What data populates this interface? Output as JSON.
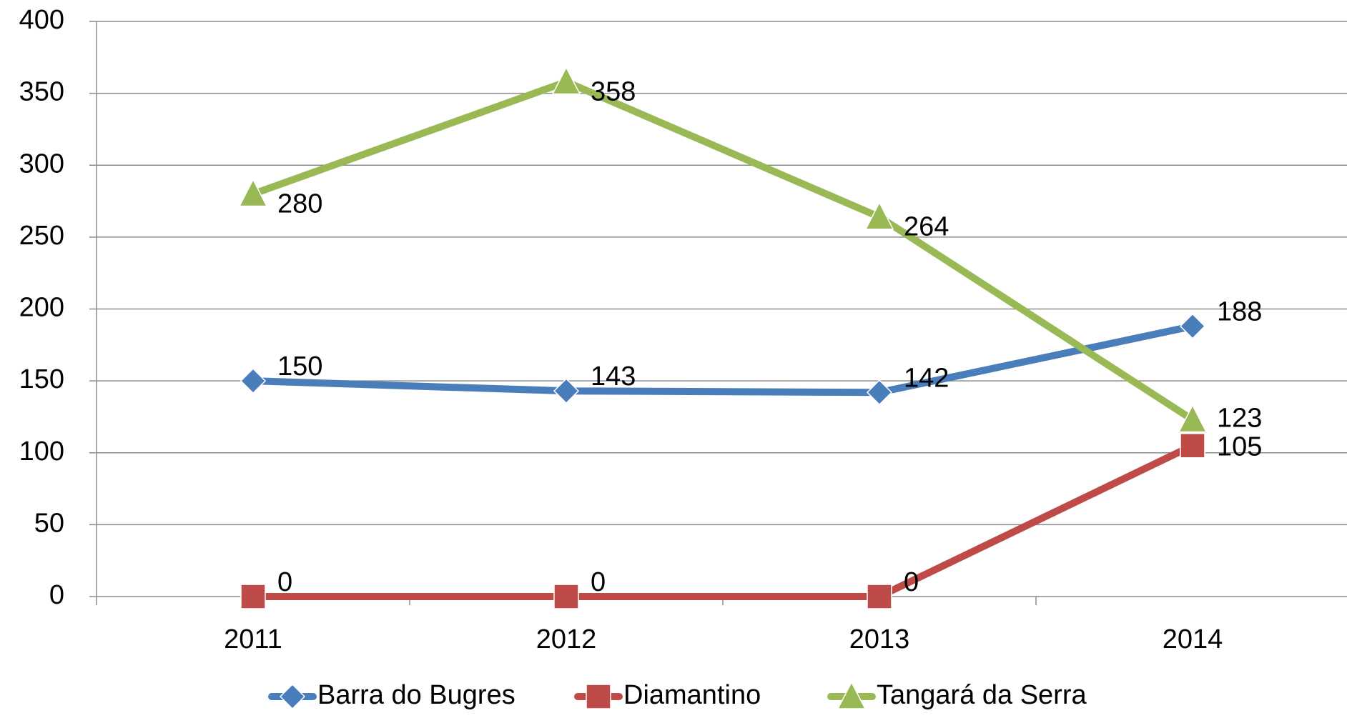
{
  "chart_data": {
    "type": "line",
    "categories": [
      "2011",
      "2012",
      "2013",
      "2014"
    ],
    "series": [
      {
        "name": "Barra do Bugres",
        "color": "#4a7ebb",
        "marker": "diamond",
        "values": [
          150,
          143,
          142,
          188
        ]
      },
      {
        "name": "Diamantino",
        "color": "#be4b48",
        "marker": "square",
        "values": [
          0,
          0,
          0,
          105
        ]
      },
      {
        "name": "Tangará da Serra",
        "color": "#98b954",
        "marker": "triangle",
        "values": [
          280,
          358,
          264,
          123
        ]
      }
    ],
    "ylim": [
      0,
      400
    ],
    "yticks": [
      0,
      50,
      100,
      150,
      200,
      250,
      300,
      350,
      400
    ],
    "grid": true,
    "legend": "bottom"
  }
}
